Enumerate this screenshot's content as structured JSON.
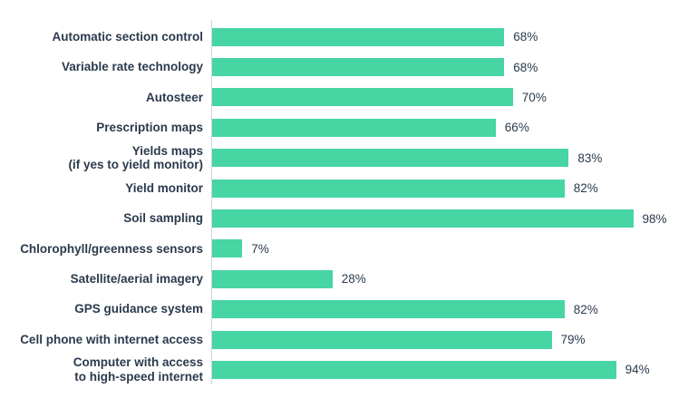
{
  "chart_data": {
    "type": "bar",
    "orientation": "horizontal",
    "title": "",
    "xlabel": "",
    "ylabel": "",
    "xlim": [
      0,
      100
    ],
    "grid": false,
    "legend": false,
    "categories": [
      "Automatic section control",
      "Variable rate technology",
      "Autosteer",
      "Prescription maps",
      "Yields maps\n(if yes to yield monitor)",
      "Yield monitor",
      "Soil sampling",
      "Chlorophyll/greenness sensors",
      "Satellite/aerial imagery",
      "GPS guidance system",
      "Cell phone with internet access",
      "Computer with access\nto high-speed internet"
    ],
    "values": [
      68,
      68,
      70,
      66,
      83,
      82,
      98,
      7,
      28,
      82,
      79,
      94
    ],
    "value_labels": [
      "68%",
      "68%",
      "70%",
      "66%",
      "83%",
      "82%",
      "98%",
      "7%",
      "28%",
      "82%",
      "79%",
      "94%"
    ],
    "colors": {
      "bar": "#47d5a3",
      "text": "#2b3a4d",
      "axis_line": "#d0d4d9",
      "background": "#ffffff"
    }
  }
}
